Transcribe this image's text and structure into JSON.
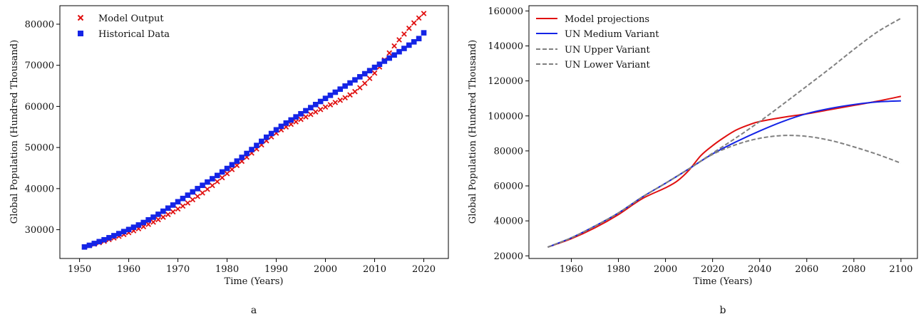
{
  "chart_data": [
    {
      "type": "scatter",
      "subtitle": "a",
      "xlabel": "Time (Years)",
      "ylabel": "Global Population (Hundred Thousand)",
      "xlim": [
        1946,
        2025
      ],
      "ylim": [
        23000,
        84500
      ],
      "xticks": [
        1950,
        1960,
        1970,
        1980,
        1990,
        2000,
        2010,
        2020
      ],
      "yticks": [
        30000,
        40000,
        50000,
        60000,
        70000,
        80000
      ],
      "legend_position": "top-left",
      "grid": false,
      "series": [
        {
          "name": "Model Output",
          "marker": "x",
          "color": "#e01010",
          "x": [
            1951,
            1952,
            1953,
            1954,
            1955,
            1956,
            1957,
            1958,
            1959,
            1960,
            1961,
            1962,
            1963,
            1964,
            1965,
            1966,
            1967,
            1968,
            1969,
            1970,
            1971,
            1972,
            1973,
            1974,
            1975,
            1976,
            1977,
            1978,
            1979,
            1980,
            1981,
            1982,
            1983,
            1984,
            1985,
            1986,
            1987,
            1988,
            1989,
            1990,
            1991,
            1992,
            1993,
            1994,
            1995,
            1996,
            1997,
            1998,
            1999,
            2000,
            2001,
            2002,
            2003,
            2004,
            2005,
            2006,
            2007,
            2008,
            2009,
            2010,
            2011,
            2012,
            2013,
            2014,
            2015,
            2016,
            2017,
            2018,
            2019,
            2020
          ],
          "y": [
            25800,
            26150,
            26500,
            26850,
            27200,
            27600,
            28000,
            28400,
            28850,
            29300,
            29750,
            30250,
            30750,
            31300,
            31850,
            32450,
            33050,
            33700,
            34350,
            35050,
            35750,
            36500,
            37300,
            38100,
            38950,
            39850,
            40750,
            41700,
            42650,
            43650,
            44650,
            45650,
            46650,
            47650,
            48650,
            49650,
            50650,
            51650,
            52600,
            53500,
            54300,
            55000,
            55650,
            56250,
            56850,
            57450,
            58050,
            58650,
            59250,
            59850,
            60400,
            60950,
            61500,
            62100,
            62800,
            63600,
            64550,
            65600,
            66800,
            68100,
            69600,
            71300,
            73000,
            74700,
            76200,
            77600,
            79000,
            80300,
            81500,
            82600
          ]
        },
        {
          "name": "Historical Data",
          "marker": "square",
          "color": "#1424e6",
          "x": [
            1951,
            1952,
            1953,
            1954,
            1955,
            1956,
            1957,
            1958,
            1959,
            1960,
            1961,
            1962,
            1963,
            1964,
            1965,
            1966,
            1967,
            1968,
            1969,
            1970,
            1971,
            1972,
            1973,
            1974,
            1975,
            1976,
            1977,
            1978,
            1979,
            1980,
            1981,
            1982,
            1983,
            1984,
            1985,
            1986,
            1987,
            1988,
            1989,
            1990,
            1991,
            1992,
            1993,
            1994,
            1995,
            1996,
            1997,
            1998,
            1999,
            2000,
            2001,
            2002,
            2003,
            2004,
            2005,
            2006,
            2007,
            2008,
            2009,
            2010,
            2011,
            2012,
            2013,
            2014,
            2015,
            2016,
            2017,
            2018,
            2019,
            2020
          ],
          "y": [
            25800,
            26200,
            26650,
            27100,
            27550,
            28050,
            28550,
            29050,
            29550,
            30050,
            30600,
            31150,
            31750,
            32400,
            33050,
            33750,
            34500,
            35250,
            36000,
            36800,
            37600,
            38400,
            39200,
            40000,
            40800,
            41600,
            42400,
            43200,
            44050,
            44900,
            45800,
            46700,
            47600,
            48550,
            49500,
            50500,
            51500,
            52500,
            53400,
            54300,
            55150,
            55950,
            56700,
            57450,
            58200,
            58950,
            59700,
            60450,
            61200,
            61950,
            62700,
            63450,
            64200,
            64950,
            65700,
            66450,
            67200,
            67950,
            68700,
            69500,
            70250,
            71000,
            71750,
            72500,
            73300,
            74100,
            74900,
            75700,
            76500,
            77900
          ]
        }
      ]
    },
    {
      "type": "line",
      "subtitle": "b",
      "xlabel": "Time (Years)",
      "ylabel": "Global Population (Hundred Thousand)",
      "xlim": [
        1942,
        2107
      ],
      "ylim": [
        18500,
        163000
      ],
      "xticks": [
        1960,
        1980,
        2000,
        2020,
        2040,
        2060,
        2080,
        2100
      ],
      "yticks": [
        20000,
        40000,
        60000,
        80000,
        100000,
        120000,
        140000,
        160000
      ],
      "legend_position": "top-left",
      "grid": false,
      "series": [
        {
          "name": "Model projections",
          "color": "#e01010",
          "dash": "solid",
          "x": [
            1950,
            1960,
            1970,
            1980,
            1990,
            2000,
            2005,
            2010,
            2015,
            2020,
            2025,
            2030,
            2035,
            2040,
            2050,
            2060,
            2070,
            2080,
            2090,
            2100
          ],
          "y": [
            25000,
            29800,
            36000,
            43600,
            52600,
            58900,
            62800,
            69000,
            77300,
            83000,
            87800,
            91900,
            94700,
            96800,
            99200,
            101200,
            103600,
            106000,
            108400,
            111200
          ]
        },
        {
          "name": "UN Medium Variant",
          "color": "#1424e6",
          "dash": "solid",
          "x": [
            1950,
            1960,
            1970,
            1980,
            1990,
            2000,
            2010,
            2020,
            2030,
            2040,
            2050,
            2060,
            2070,
            2080,
            2090,
            2100
          ],
          "y": [
            25000,
            30300,
            37000,
            44500,
            53500,
            61500,
            69800,
            78300,
            85200,
            91400,
            96900,
            101300,
            104300,
            106500,
            108000,
            108600
          ]
        },
        {
          "name": "UN Upper Variant",
          "color": "#808080",
          "dash": "dashed",
          "x": [
            1950,
            1960,
            1970,
            1980,
            1990,
            2000,
            2010,
            2020,
            2030,
            2040,
            2050,
            2060,
            2070,
            2080,
            2090,
            2100
          ],
          "y": [
            25000,
            30300,
            37000,
            44500,
            53500,
            61500,
            69800,
            78700,
            87500,
            96800,
            106800,
            117000,
            127300,
            138000,
            148000,
            155800
          ]
        },
        {
          "name": "UN Lower Variant",
          "color": "#808080",
          "dash": "dashed",
          "x": [
            1950,
            1960,
            1970,
            1980,
            1990,
            2000,
            2010,
            2020,
            2030,
            2040,
            2050,
            2060,
            2070,
            2080,
            2090,
            2100
          ],
          "y": [
            25000,
            30300,
            37000,
            44500,
            53500,
            61500,
            69800,
            78000,
            83600,
            87200,
            88800,
            88300,
            86000,
            82300,
            78000,
            73000
          ]
        }
      ]
    }
  ]
}
